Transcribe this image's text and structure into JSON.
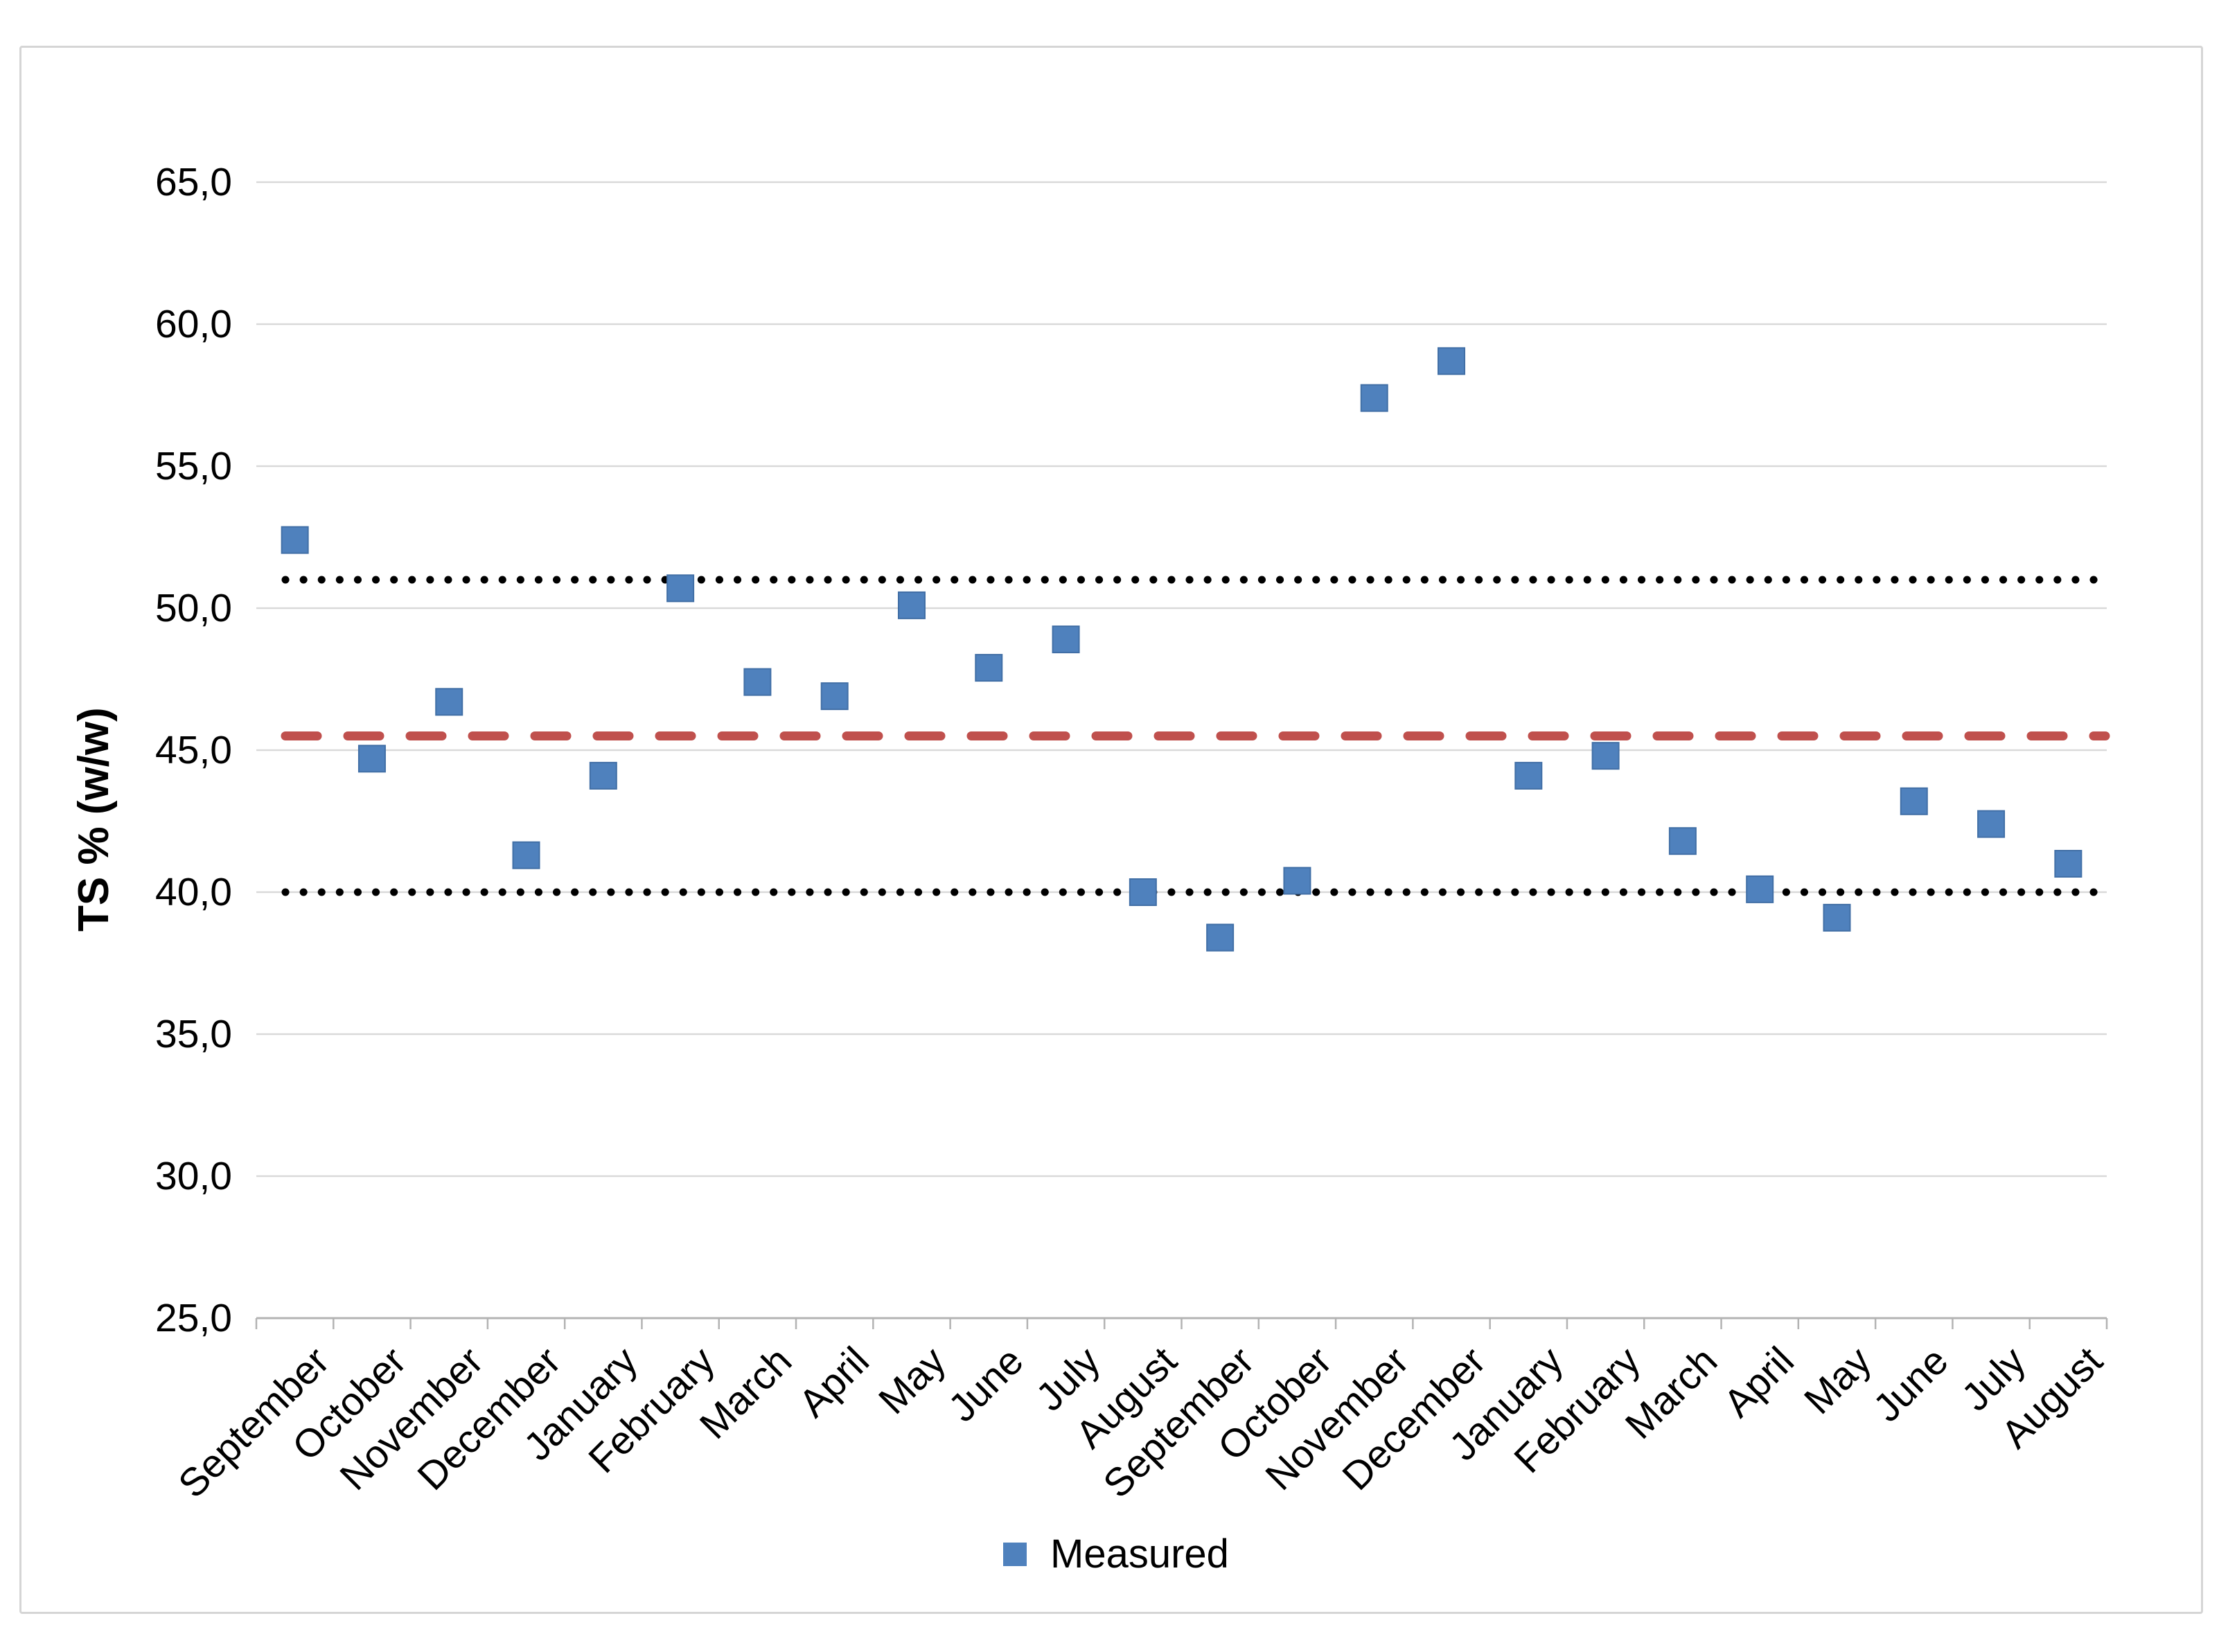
{
  "chart_data": {
    "type": "scatter",
    "title": "",
    "xlabel": "",
    "ylabel": "TS % (w/w)",
    "ylim": [
      25,
      65
    ],
    "ytick_step": 5,
    "y_ticks": [
      {
        "value": 65,
        "label": "65,0"
      },
      {
        "value": 60,
        "label": "60,0"
      },
      {
        "value": 55,
        "label": "55,0"
      },
      {
        "value": 50,
        "label": "50,0"
      },
      {
        "value": 45,
        "label": "45,0"
      },
      {
        "value": 40,
        "label": "40,0"
      },
      {
        "value": 35,
        "label": "35,0"
      },
      {
        "value": 30,
        "label": "30,0"
      },
      {
        "value": 25,
        "label": "25,0"
      }
    ],
    "categories": [
      "September",
      "October",
      "November",
      "December",
      "January",
      "February",
      "March",
      "April",
      "May",
      "June",
      "July",
      "August",
      "September",
      "October",
      "November",
      "December",
      "January",
      "February",
      "March",
      "April",
      "May",
      "June",
      "July",
      "August"
    ],
    "series": [
      {
        "name": "Measured",
        "marker": "square",
        "color": "#4F81BD",
        "values": [
          52.4,
          44.7,
          46.7,
          41.3,
          44.1,
          50.7,
          47.4,
          46.9,
          50.1,
          47.9,
          48.9,
          40.0,
          38.4,
          40.4,
          57.4,
          58.7,
          44.1,
          44.8,
          41.8,
          40.1,
          39.1,
          43.2,
          42.4,
          41.0
        ]
      }
    ],
    "reference_lines": [
      {
        "name": "upper-limit-line",
        "value": 51.0,
        "style": "dotted",
        "color": "#000000"
      },
      {
        "name": "average-line",
        "value": 45.5,
        "style": "dashed",
        "color": "#C0504D"
      },
      {
        "name": "lower-limit-line",
        "value": 40.0,
        "style": "dotted",
        "color": "#000000"
      }
    ],
    "grid": true,
    "legend_position": "bottom"
  },
  "legend": {
    "measured_label": "Measured"
  },
  "colors": {
    "marker": "#4F81BD",
    "marker_edge": "#416FA6",
    "mean_line": "#C0504D",
    "control_line": "#000000",
    "gridline": "#D9D9D9",
    "axis_line": "#B3B3B3",
    "border": "#D5D5D5",
    "text": "#000000"
  }
}
